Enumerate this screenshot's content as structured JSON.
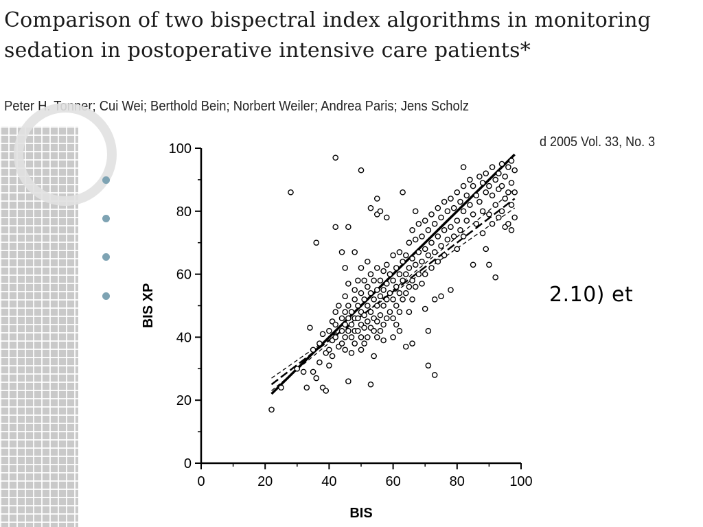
{
  "slide": {
    "title": "Comparison of two bispectral index algorithms in monitoring sedation in postoperative intensive care patients*",
    "authors": "Peter H. Tonner; Cui Wei; Berthold Bein; Norbert Weiler; Andrea Paris; Jens Scholz",
    "citation": "d 2005 Vol. 33, No. 3",
    "overlay_text": "2.10) et",
    "bullet_icon": "bullet-dot-icon",
    "accent_color": "#7ea3b3"
  },
  "chart_data": {
    "type": "scatter",
    "xlabel": "BIS",
    "ylabel": "BIS XP",
    "xlim": [
      0,
      100
    ],
    "ylim": [
      0,
      100
    ],
    "x_ticks": [
      "0",
      "20",
      "40",
      "60",
      "80",
      "100"
    ],
    "y_ticks": [
      "0",
      "20",
      "40",
      "60",
      "80",
      "100"
    ],
    "grid": false,
    "marker": "open-circle",
    "points": [
      [
        22,
        17
      ],
      [
        25,
        24
      ],
      [
        28,
        86
      ],
      [
        30,
        30
      ],
      [
        32,
        29
      ],
      [
        33,
        24
      ],
      [
        34,
        43
      ],
      [
        35,
        36
      ],
      [
        35,
        29
      ],
      [
        36,
        70
      ],
      [
        36,
        27
      ],
      [
        37,
        38
      ],
      [
        37,
        32
      ],
      [
        38,
        41
      ],
      [
        38,
        24
      ],
      [
        39,
        23
      ],
      [
        39,
        35
      ],
      [
        40,
        42
      ],
      [
        40,
        36
      ],
      [
        40,
        31
      ],
      [
        41,
        45
      ],
      [
        41,
        39
      ],
      [
        41,
        34
      ],
      [
        42,
        75
      ],
      [
        42,
        97
      ],
      [
        42,
        48
      ],
      [
        42,
        44
      ],
      [
        42,
        40
      ],
      [
        43,
        37
      ],
      [
        43,
        50
      ],
      [
        44,
        67
      ],
      [
        44,
        46
      ],
      [
        44,
        42
      ],
      [
        44,
        38
      ],
      [
        45,
        62
      ],
      [
        45,
        53
      ],
      [
        45,
        48
      ],
      [
        45,
        44
      ],
      [
        45,
        40
      ],
      [
        45,
        36
      ],
      [
        46,
        75
      ],
      [
        46,
        57
      ],
      [
        46,
        50
      ],
      [
        46,
        46
      ],
      [
        46,
        42
      ],
      [
        46,
        26
      ],
      [
        47,
        48
      ],
      [
        47,
        44
      ],
      [
        47,
        40
      ],
      [
        47,
        35
      ],
      [
        48,
        67
      ],
      [
        48,
        55
      ],
      [
        48,
        52
      ],
      [
        48,
        46
      ],
      [
        48,
        42
      ],
      [
        48,
        38
      ],
      [
        49,
        58
      ],
      [
        49,
        50
      ],
      [
        49,
        46
      ],
      [
        49,
        42
      ],
      [
        50,
        93
      ],
      [
        50,
        62
      ],
      [
        50,
        54
      ],
      [
        50,
        48
      ],
      [
        50,
        44
      ],
      [
        50,
        40
      ],
      [
        50,
        36
      ],
      [
        51,
        58
      ],
      [
        51,
        52
      ],
      [
        51,
        47
      ],
      [
        51,
        43
      ],
      [
        51,
        38
      ],
      [
        52,
        64
      ],
      [
        52,
        56
      ],
      [
        52,
        50
      ],
      [
        52,
        45
      ],
      [
        52,
        40
      ],
      [
        53,
        81
      ],
      [
        53,
        60
      ],
      [
        53,
        54
      ],
      [
        53,
        48
      ],
      [
        53,
        43
      ],
      [
        53,
        25
      ],
      [
        54,
        58
      ],
      [
        54,
        52
      ],
      [
        54,
        46
      ],
      [
        54,
        42
      ],
      [
        54,
        34
      ],
      [
        55,
        84
      ],
      [
        55,
        79
      ],
      [
        55,
        62
      ],
      [
        55,
        55
      ],
      [
        55,
        50
      ],
      [
        55,
        45
      ],
      [
        55,
        40
      ],
      [
        56,
        80
      ],
      [
        56,
        58
      ],
      [
        56,
        53
      ],
      [
        56,
        47
      ],
      [
        56,
        42
      ],
      [
        57,
        61
      ],
      [
        57,
        55
      ],
      [
        57,
        50
      ],
      [
        57,
        44
      ],
      [
        57,
        39
      ],
      [
        58,
        78
      ],
      [
        58,
        63
      ],
      [
        58,
        57
      ],
      [
        58,
        52
      ],
      [
        58,
        46
      ],
      [
        59,
        60
      ],
      [
        59,
        54
      ],
      [
        59,
        48
      ],
      [
        60,
        66
      ],
      [
        60,
        58
      ],
      [
        60,
        52
      ],
      [
        60,
        46
      ],
      [
        60,
        40
      ],
      [
        61,
        62
      ],
      [
        61,
        56
      ],
      [
        61,
        50
      ],
      [
        61,
        44
      ],
      [
        62,
        67
      ],
      [
        62,
        60
      ],
      [
        62,
        54
      ],
      [
        62,
        48
      ],
      [
        62,
        42
      ],
      [
        63,
        86
      ],
      [
        63,
        64
      ],
      [
        63,
        58
      ],
      [
        63,
        52
      ],
      [
        64,
        66
      ],
      [
        64,
        60
      ],
      [
        64,
        54
      ],
      [
        64,
        37
      ],
      [
        65,
        70
      ],
      [
        65,
        62
      ],
      [
        65,
        56
      ],
      [
        65,
        48
      ],
      [
        66,
        74
      ],
      [
        66,
        65
      ],
      [
        66,
        58
      ],
      [
        66,
        52
      ],
      [
        66,
        38
      ],
      [
        67,
        80
      ],
      [
        67,
        71
      ],
      [
        67,
        63
      ],
      [
        67,
        56
      ],
      [
        68,
        76
      ],
      [
        68,
        67
      ],
      [
        68,
        60
      ],
      [
        69,
        72
      ],
      [
        69,
        64
      ],
      [
        69,
        57
      ],
      [
        70,
        77
      ],
      [
        70,
        68
      ],
      [
        70,
        60
      ],
      [
        70,
        49
      ],
      [
        71,
        74
      ],
      [
        71,
        66
      ],
      [
        71,
        42
      ],
      [
        71,
        31
      ],
      [
        72,
        79
      ],
      [
        72,
        70
      ],
      [
        72,
        62
      ],
      [
        73,
        76
      ],
      [
        73,
        67
      ],
      [
        73,
        52
      ],
      [
        73,
        28
      ],
      [
        74,
        81
      ],
      [
        74,
        72
      ],
      [
        74,
        64
      ],
      [
        75,
        78
      ],
      [
        75,
        69
      ],
      [
        75,
        53
      ],
      [
        76,
        83
      ],
      [
        76,
        74
      ],
      [
        76,
        66
      ],
      [
        77,
        80
      ],
      [
        77,
        71
      ],
      [
        78,
        84
      ],
      [
        78,
        75
      ],
      [
        78,
        55
      ],
      [
        79,
        81
      ],
      [
        79,
        72
      ],
      [
        80,
        86
      ],
      [
        80,
        77
      ],
      [
        80,
        68
      ],
      [
        81,
        83
      ],
      [
        81,
        74
      ],
      [
        82,
        94
      ],
      [
        82,
        88
      ],
      [
        82,
        80
      ],
      [
        82,
        72
      ],
      [
        83,
        85
      ],
      [
        83,
        77
      ],
      [
        84,
        90
      ],
      [
        84,
        82
      ],
      [
        85,
        88
      ],
      [
        85,
        79
      ],
      [
        85,
        63
      ],
      [
        86,
        85
      ],
      [
        86,
        76
      ],
      [
        87,
        91
      ],
      [
        87,
        83
      ],
      [
        88,
        89
      ],
      [
        88,
        80
      ],
      [
        88,
        73
      ],
      [
        89,
        92
      ],
      [
        89,
        86
      ],
      [
        89,
        68
      ],
      [
        90,
        88
      ],
      [
        90,
        79
      ],
      [
        90,
        63
      ],
      [
        91,
        94
      ],
      [
        91,
        85
      ],
      [
        91,
        76
      ],
      [
        92,
        90
      ],
      [
        92,
        82
      ],
      [
        92,
        59
      ],
      [
        93,
        92
      ],
      [
        93,
        87
      ],
      [
        93,
        78
      ],
      [
        94,
        95
      ],
      [
        94,
        88
      ],
      [
        94,
        80
      ],
      [
        95,
        91
      ],
      [
        95,
        84
      ],
      [
        95,
        75
      ],
      [
        96,
        94
      ],
      [
        96,
        86
      ],
      [
        96,
        76
      ],
      [
        97,
        96
      ],
      [
        97,
        89
      ],
      [
        97,
        82
      ],
      [
        97,
        74
      ],
      [
        98,
        93
      ],
      [
        98,
        86
      ],
      [
        98,
        78
      ]
    ],
    "lines": [
      {
        "style": "solid-thick",
        "x": [
          22,
          98
        ],
        "y": [
          22,
          98
        ]
      },
      {
        "style": "dashed",
        "x": [
          22,
          98
        ],
        "y": [
          25,
          84
        ]
      },
      {
        "style": "dashed-thin",
        "x": [
          22,
          98
        ],
        "y": [
          27,
          81
        ]
      },
      {
        "style": "dashed-thin",
        "x": [
          22,
          98
        ],
        "y": [
          23,
          87
        ]
      }
    ]
  }
}
